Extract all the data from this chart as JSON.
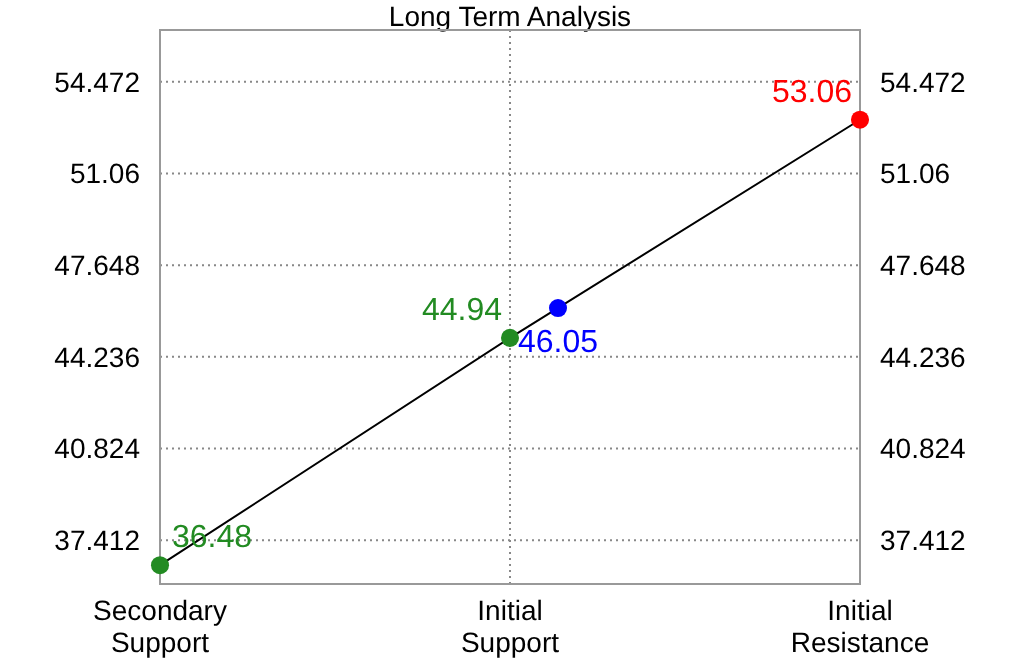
{
  "chart_data": {
    "type": "line",
    "title": "Long Term Analysis",
    "categories": [
      "Secondary\nSupport",
      "Initial\nSupport",
      "Initial\nResistance"
    ],
    "ylim": [
      35.78,
      56.4
    ],
    "yticks": [
      37.412,
      40.824,
      44.236,
      47.648,
      51.06,
      54.472
    ],
    "y2lim": [
      35.78,
      56.4
    ],
    "y2ticks": [
      37.412,
      40.824,
      44.236,
      47.648,
      51.06,
      54.472
    ],
    "grid": true,
    "series": [
      {
        "color": "#000000",
        "values": [
          36.48,
          44.94,
          53.06
        ],
        "marker": "none"
      },
      {
        "type": "scatter",
        "x": [
          "Secondary\nSupport",
          "Initial\nSupport",
          "Initial\nSupport",
          "Initial\nResistance"
        ],
        "values": [
          36.48,
          44.94,
          46.05,
          53.06
        ],
        "colors": [
          "#228b22",
          "#228b22",
          "#0000ff",
          "#ff0000"
        ],
        "marker": "circle",
        "value_labels": [
          "36.48",
          "44.94",
          "46.05",
          "53.06"
        ]
      }
    ]
  }
}
